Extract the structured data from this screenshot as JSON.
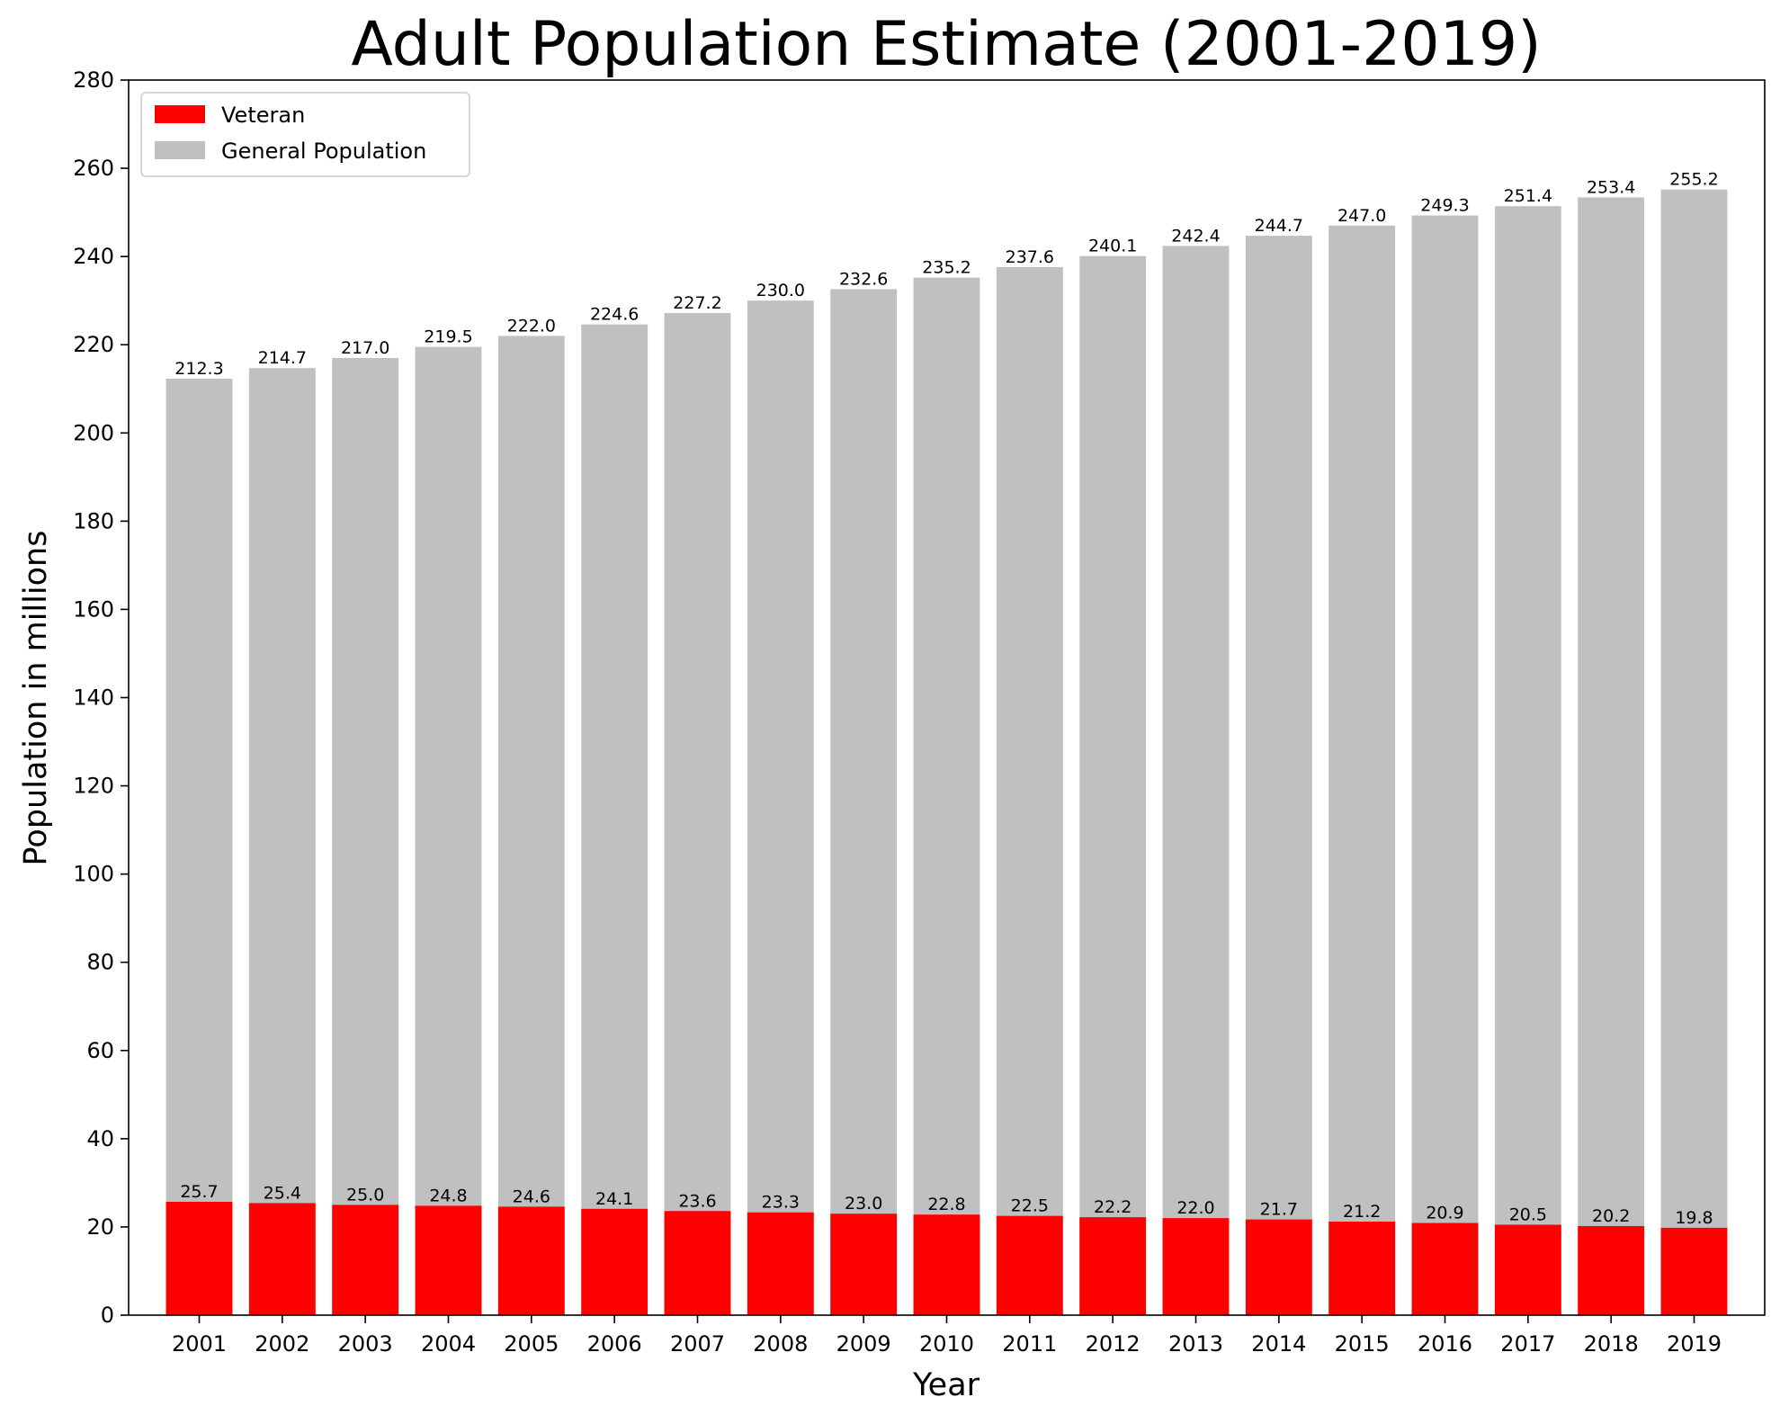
{
  "chart_data": {
    "type": "bar",
    "stacked": false,
    "title": "Adult Population Estimate (2001-2019)",
    "xlabel": "Year",
    "ylabel": "Population in millions",
    "ylim": [
      0,
      280
    ],
    "yticks": [
      "0",
      "20",
      "40",
      "60",
      "80",
      "100",
      "120",
      "140",
      "160",
      "180",
      "200",
      "220",
      "240",
      "260",
      "280"
    ],
    "categories": [
      "2001",
      "2002",
      "2003",
      "2004",
      "2005",
      "2006",
      "2007",
      "2008",
      "2009",
      "2010",
      "2011",
      "2012",
      "2013",
      "2014",
      "2015",
      "2016",
      "2017",
      "2018",
      "2019"
    ],
    "series": [
      {
        "name": "General Population",
        "color": "#c0c0c0",
        "values": [
          212.3,
          214.7,
          217.0,
          219.5,
          222.0,
          224.6,
          227.2,
          230.0,
          232.6,
          235.2,
          237.6,
          240.1,
          242.4,
          244.7,
          247.0,
          249.3,
          251.4,
          253.4,
          255.2
        ],
        "labels": [
          "212.3",
          "214.7",
          "217.0",
          "219.5",
          "222.0",
          "224.6",
          "227.2",
          "230.0",
          "232.6",
          "235.2",
          "237.6",
          "240.1",
          "242.4",
          "244.7",
          "247.0",
          "249.3",
          "251.4",
          "253.4",
          "255.2"
        ]
      },
      {
        "name": "Veteran",
        "color": "#ff0000",
        "values": [
          25.7,
          25.4,
          25.0,
          24.8,
          24.6,
          24.1,
          23.6,
          23.3,
          23.0,
          22.8,
          22.5,
          22.2,
          22.0,
          21.7,
          21.2,
          20.9,
          20.5,
          20.2,
          19.8
        ],
        "labels": [
          "25.7",
          "25.4",
          "25.0",
          "24.8",
          "24.6",
          "24.1",
          "23.6",
          "23.3",
          "23.0",
          "22.8",
          "22.5",
          "22.2",
          "22.0",
          "21.7",
          "21.2",
          "20.9",
          "20.5",
          "20.2",
          "19.8"
        ]
      }
    ],
    "legend": {
      "position": "top-left",
      "entries": [
        "Veteran",
        "General Population"
      ]
    },
    "grid": false
  }
}
